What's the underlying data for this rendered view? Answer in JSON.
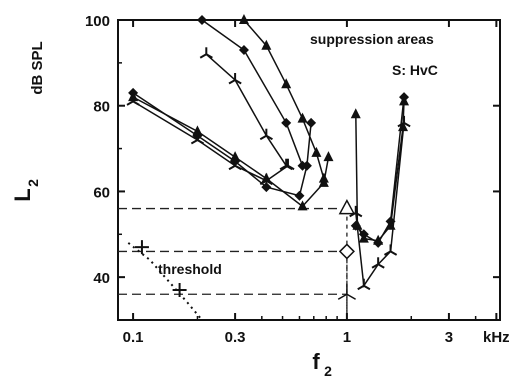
{
  "chart_data": {
    "type": "line",
    "title": "",
    "annotations": {
      "title_text": "suppression areas",
      "subject": "S: HvC",
      "threshold": "threshold"
    },
    "xlabel": "f",
    "xlabel_sub": "2",
    "ylabel": "L",
    "ylabel_sub": "2",
    "yunit": "dB SPL",
    "xscale": "log",
    "xlim": [
      0.085,
      5.2
    ],
    "ylim": [
      30,
      100
    ],
    "grid": false,
    "x_ticks": [
      {
        "value": 0.1,
        "label": "0.1"
      },
      {
        "value": 0.3,
        "label": "0.3"
      },
      {
        "value": 1,
        "label": "1"
      },
      {
        "value": 3,
        "label": "3"
      },
      {
        "value": 5,
        "label": "kHz"
      }
    ],
    "y_ticks": [
      {
        "value": 40,
        "label": "40"
      },
      {
        "value": 60,
        "label": "60"
      },
      {
        "value": 80,
        "label": "80"
      },
      {
        "value": 100,
        "label": "100"
      }
    ],
    "series": [
      {
        "marker": "triangle",
        "points": [
          [
            0.1,
            82
          ],
          [
            0.2,
            74
          ],
          [
            0.3,
            68
          ],
          [
            0.42,
            63
          ],
          [
            0.62,
            56.5
          ],
          [
            0.78,
            62
          ],
          [
            0.82,
            68
          ]
        ]
      },
      {
        "marker": "diamond",
        "points": [
          [
            0.1,
            83
          ],
          [
            0.2,
            73
          ],
          [
            0.3,
            67
          ],
          [
            0.42,
            61
          ],
          [
            0.6,
            59
          ],
          [
            0.65,
            66
          ],
          [
            0.68,
            76
          ]
        ]
      },
      {
        "marker": "tristar",
        "points": [
          [
            0.1,
            81
          ],
          [
            0.2,
            72
          ],
          [
            0.3,
            66
          ],
          [
            0.42,
            62.5
          ],
          [
            0.53,
            66
          ]
        ]
      },
      {
        "marker": "diamond",
        "points": [
          [
            0.21,
            100
          ],
          [
            0.33,
            93
          ],
          [
            0.52,
            76
          ],
          [
            0.62,
            66
          ]
        ]
      },
      {
        "marker": "tristar",
        "points": [
          [
            0.22,
            92
          ],
          [
            0.3,
            86
          ],
          [
            0.42,
            73
          ],
          [
            0.52,
            66
          ]
        ]
      },
      {
        "marker": "triangle",
        "points": [
          [
            0.33,
            100
          ],
          [
            0.42,
            94
          ],
          [
            0.52,
            85
          ],
          [
            0.62,
            77
          ],
          [
            0.72,
            69
          ],
          [
            0.78,
            63
          ]
        ]
      },
      {
        "marker": "triangle",
        "points": [
          [
            1.1,
            78
          ],
          [
            1.12,
            52
          ],
          [
            1.2,
            49
          ],
          [
            1.4,
            48.5
          ],
          [
            1.6,
            52
          ],
          [
            1.83,
            75
          ],
          [
            1.85,
            81
          ]
        ]
      },
      {
        "marker": "diamond",
        "points": [
          [
            1.1,
            52
          ],
          [
            1.2,
            50
          ],
          [
            1.4,
            48
          ],
          [
            1.6,
            53
          ],
          [
            1.85,
            82
          ]
        ]
      },
      {
        "marker": "tristar",
        "points": [
          [
            1.1,
            55
          ],
          [
            1.2,
            38
          ],
          [
            1.4,
            43
          ],
          [
            1.6,
            46
          ],
          [
            1.85,
            76
          ]
        ]
      }
    ],
    "probes": [
      {
        "marker": "open-triangle",
        "x": 1,
        "y": 56
      },
      {
        "marker": "open-diamond",
        "x": 1,
        "y": 46
      },
      {
        "marker": "open-tristar",
        "x": 1,
        "y": 36
      }
    ],
    "threshold_curve": [
      [
        0.095,
        48
      ],
      [
        0.12,
        44
      ],
      [
        0.15,
        38.5
      ],
      [
        0.18,
        34
      ],
      [
        0.21,
        30
      ]
    ],
    "threshold_points": [
      [
        0.11,
        47
      ],
      [
        0.165,
        37
      ]
    ]
  }
}
